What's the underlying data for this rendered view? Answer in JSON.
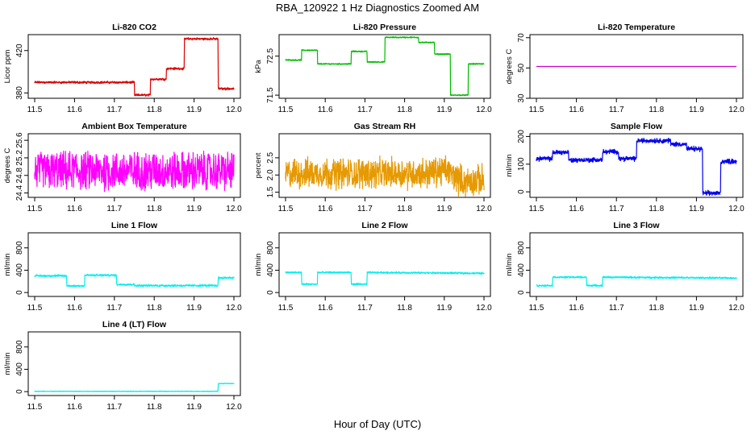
{
  "figure": {
    "title": "RBA_120922  1 Hz Diagnostics Zoomed AM",
    "xlabel": "Hour of Day (UTC)"
  },
  "chart_data": [
    {
      "type": "line",
      "title": "Li-820 CO2",
      "ylabel": "Licor ppm",
      "color": "#dd0000",
      "xlim": [
        11.5,
        12.0
      ],
      "xticks": [
        "11.5",
        "11.6",
        "11.7",
        "11.8",
        "11.9",
        "12.0"
      ],
      "ylim": [
        375,
        435
      ],
      "yticks": [
        "380",
        "420"
      ],
      "noise": 0.6,
      "sec_noise": 0.4,
      "x": [
        11.5,
        11.75,
        11.75,
        11.79,
        11.79,
        11.83,
        11.83,
        11.875,
        11.875,
        11.96,
        11.96,
        12.0
      ],
      "y": [
        390,
        390,
        378,
        378,
        393,
        393,
        403,
        403,
        431,
        431,
        384,
        384
      ]
    },
    {
      "type": "line",
      "title": "Li-820 Pressure",
      "ylabel": "kPa",
      "color": "#00bb00",
      "xlim": [
        11.5,
        12.0
      ],
      "xticks": [
        "11.5",
        "11.6",
        "11.7",
        "11.8",
        "11.9",
        "12.0"
      ],
      "ylim": [
        71.42,
        73.05
      ],
      "yticks": [
        "71.5",
        "72.5"
      ],
      "noise": 0.008,
      "sec_noise": 0.006,
      "x": [
        11.5,
        11.54,
        11.54,
        11.58,
        11.58,
        11.665,
        11.665,
        11.705,
        11.705,
        11.75,
        11.75,
        11.835,
        11.835,
        11.875,
        11.875,
        11.915,
        11.915,
        11.96,
        11.96,
        12.0
      ],
      "y": [
        72.4,
        72.4,
        72.65,
        72.65,
        72.3,
        72.3,
        72.62,
        72.62,
        72.35,
        72.35,
        72.98,
        72.98,
        72.85,
        72.85,
        72.55,
        72.55,
        71.5,
        71.5,
        72.3,
        72.3
      ]
    },
    {
      "type": "line",
      "title": "Li-820 Temperature",
      "ylabel": "degrees C",
      "color": "#cc00cc",
      "xlim": [
        11.5,
        12.0
      ],
      "xticks": [
        "11.5",
        "11.6",
        "11.7",
        "11.8",
        "11.9",
        "12.0"
      ],
      "ylim": [
        30,
        72
      ],
      "yticks": [
        "30",
        "50",
        "70"
      ],
      "noise": 0,
      "sec_noise": 0,
      "x": [
        11.5,
        12.0
      ],
      "y": [
        51,
        51
      ]
    },
    {
      "type": "line",
      "title": "Ambient Box Temperature",
      "ylabel": "degrees C",
      "color": "#ff00ff",
      "xlim": [
        11.5,
        12.0
      ],
      "xticks": [
        "11.5",
        "11.6",
        "11.7",
        "11.8",
        "11.9",
        "12.0"
      ],
      "ylim": [
        24.3,
        25.75
      ],
      "yticks": [
        "24.4",
        "24.8",
        "25.2",
        "25.6"
      ],
      "noise": 0.38,
      "sec_noise": 0.06,
      "noise_min": 24.35,
      "noise_max": 25.7,
      "x": [
        11.5,
        12.0
      ],
      "y": [
        24.9,
        24.9
      ]
    },
    {
      "type": "line",
      "title": "Gas Stream RH",
      "ylabel": "percent",
      "color": "#e69900",
      "xlim": [
        11.5,
        12.0
      ],
      "xticks": [
        "11.5",
        "11.6",
        "11.7",
        "11.8",
        "11.9",
        "12.0"
      ],
      "ylim": [
        1.35,
        3.2
      ],
      "yticks": [
        "1.5",
        "2.0",
        "2.5"
      ],
      "noise": 0.33,
      "sec_noise": 0.1,
      "noise_min": 1.4,
      "noise_max": 3.1,
      "x": [
        11.5,
        11.85,
        11.9,
        11.95,
        12.0
      ],
      "y": [
        2.05,
        2.05,
        2.15,
        1.8,
        1.85
      ]
    },
    {
      "type": "line",
      "title": "Sample Flow",
      "ylabel": "ml/min",
      "color": "#0000ee",
      "xlim": [
        11.5,
        12.0
      ],
      "xticks": [
        "11.5",
        "11.6",
        "11.7",
        "11.8",
        "11.9",
        "12.0"
      ],
      "ylim": [
        -20,
        210
      ],
      "yticks": [
        "0",
        "100",
        "200"
      ],
      "noise": 5,
      "sec_noise": 3,
      "x": [
        11.5,
        11.54,
        11.54,
        11.58,
        11.58,
        11.665,
        11.665,
        11.705,
        11.705,
        11.75,
        11.75,
        11.835,
        11.835,
        11.875,
        11.875,
        11.915,
        11.915,
        11.96,
        11.96,
        12.0
      ],
      "y": [
        120,
        120,
        143,
        143,
        115,
        115,
        145,
        145,
        120,
        120,
        185,
        185,
        172,
        172,
        155,
        155,
        -5,
        -5,
        110,
        110
      ]
    },
    {
      "type": "line",
      "title": "Line 1 Flow",
      "ylabel": "ml/min",
      "color": "#00eeee",
      "xlim": [
        11.5,
        12.0
      ],
      "xticks": [
        "11.5",
        "11.6",
        "11.7",
        "11.8",
        "11.9",
        "12.0"
      ],
      "ylim": [
        -70,
        1070
      ],
      "yticks": [
        "0",
        "400",
        "800"
      ],
      "noise": 12,
      "sec_noise": 6,
      "x": [
        11.5,
        11.58,
        11.58,
        11.625,
        11.625,
        11.705,
        11.705,
        11.75,
        11.75,
        11.96,
        11.96,
        12.0
      ],
      "y": [
        300,
        300,
        120,
        120,
        310,
        310,
        145,
        145,
        125,
        125,
        265,
        265
      ]
    },
    {
      "type": "line",
      "title": "Line 2 Flow",
      "ylabel": "ml/min",
      "color": "#00eeee",
      "xlim": [
        11.5,
        12.0
      ],
      "xticks": [
        "11.5",
        "11.6",
        "11.7",
        "11.8",
        "11.9",
        "12.0"
      ],
      "ylim": [
        -70,
        1070
      ],
      "yticks": [
        "0",
        "400",
        "800"
      ],
      "noise": 10,
      "sec_noise": 5,
      "x": [
        11.5,
        11.54,
        11.54,
        11.58,
        11.58,
        11.665,
        11.665,
        11.705,
        11.705,
        12.0
      ],
      "y": [
        360,
        360,
        150,
        150,
        360,
        360,
        150,
        150,
        360,
        345
      ]
    },
    {
      "type": "line",
      "title": "Line 3 Flow",
      "ylabel": "ml/min",
      "color": "#00eeee",
      "xlim": [
        11.5,
        12.0
      ],
      "xticks": [
        "11.5",
        "11.6",
        "11.7",
        "11.8",
        "11.9",
        "12.0"
      ],
      "ylim": [
        -70,
        1070
      ],
      "yticks": [
        "0",
        "400",
        "800"
      ],
      "noise": 10,
      "sec_noise": 5,
      "x": [
        11.5,
        11.54,
        11.54,
        11.625,
        11.625,
        11.665,
        11.665,
        12.0
      ],
      "y": [
        125,
        125,
        275,
        275,
        125,
        125,
        275,
        260
      ]
    },
    {
      "type": "line",
      "title": "Line 4 (LT) Flow",
      "ylabel": "ml/min",
      "color": "#00eeee",
      "xlim": [
        11.5,
        12.0
      ],
      "xticks": [
        "11.5",
        "11.6",
        "11.7",
        "11.8",
        "11.9",
        "12.0"
      ],
      "ylim": [
        -70,
        1070
      ],
      "yticks": [
        "0",
        "400",
        "800"
      ],
      "noise": 3,
      "sec_noise": 2,
      "x": [
        11.5,
        11.96,
        11.96,
        12.0
      ],
      "y": [
        5,
        5,
        145,
        145
      ]
    }
  ]
}
